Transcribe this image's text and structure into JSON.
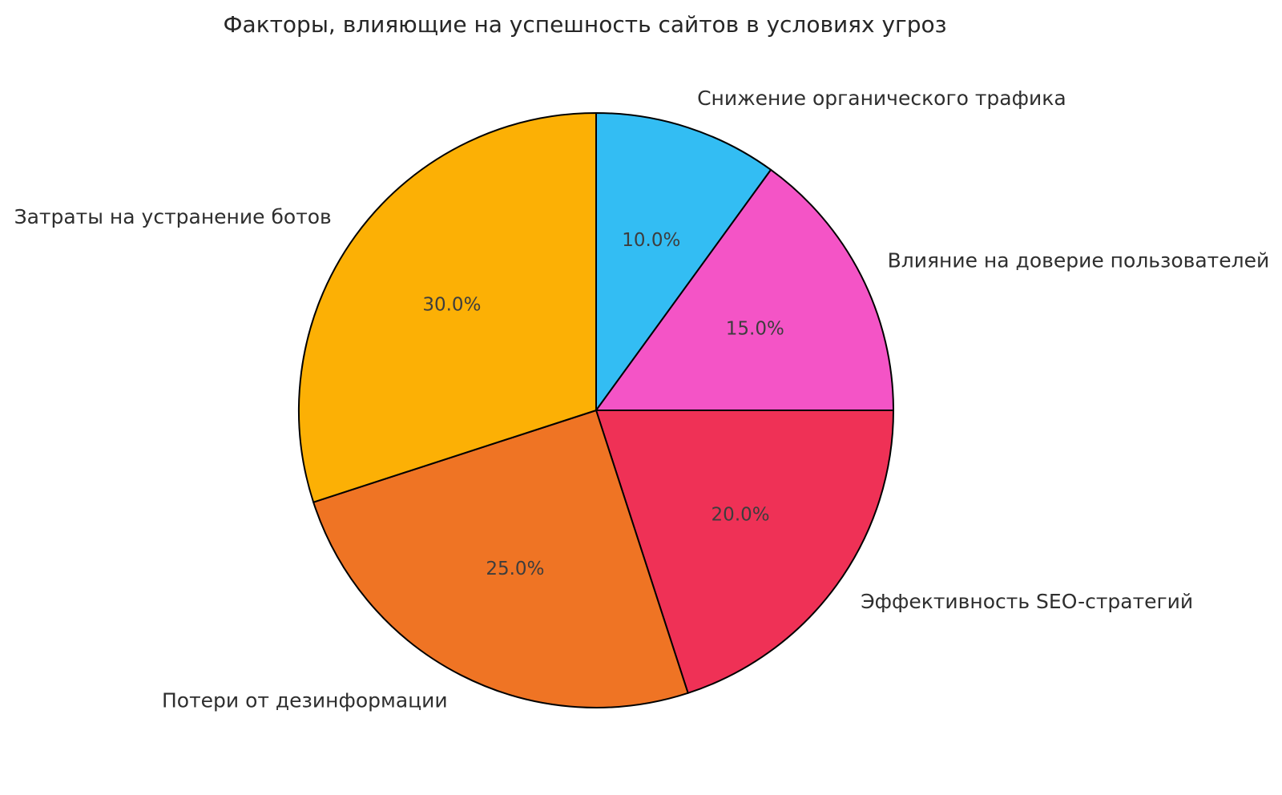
{
  "chart_data": {
    "type": "pie",
    "title": "Факторы, влияющие на успешность сайтов в условиях угроз",
    "start_angle_deg": 90,
    "direction": "clockwise",
    "edge_color": "#000000",
    "background_color": "#ffffff",
    "title_color": "#262626",
    "label_color": "#2e2e2e",
    "pct_color": "#3d3d3d",
    "slices": [
      {
        "label": "Снижение органического трафика",
        "value": 10.0,
        "pct_label": "10.0%",
        "color": "#33bdf3"
      },
      {
        "label": "Влияние на доверие пользователей",
        "value": 15.0,
        "pct_label": "15.0%",
        "color": "#f454c6"
      },
      {
        "label": "Эффективность SEO-стратегий",
        "value": 20.0,
        "pct_label": "20.0%",
        "color": "#ef3156"
      },
      {
        "label": "Потери от дезинформации",
        "value": 25.0,
        "pct_label": "25.0%",
        "color": "#ef7424"
      },
      {
        "label": "Затраты на устранение ботов",
        "value": 30.0,
        "pct_label": "30.0%",
        "color": "#fcb005"
      }
    ]
  }
}
